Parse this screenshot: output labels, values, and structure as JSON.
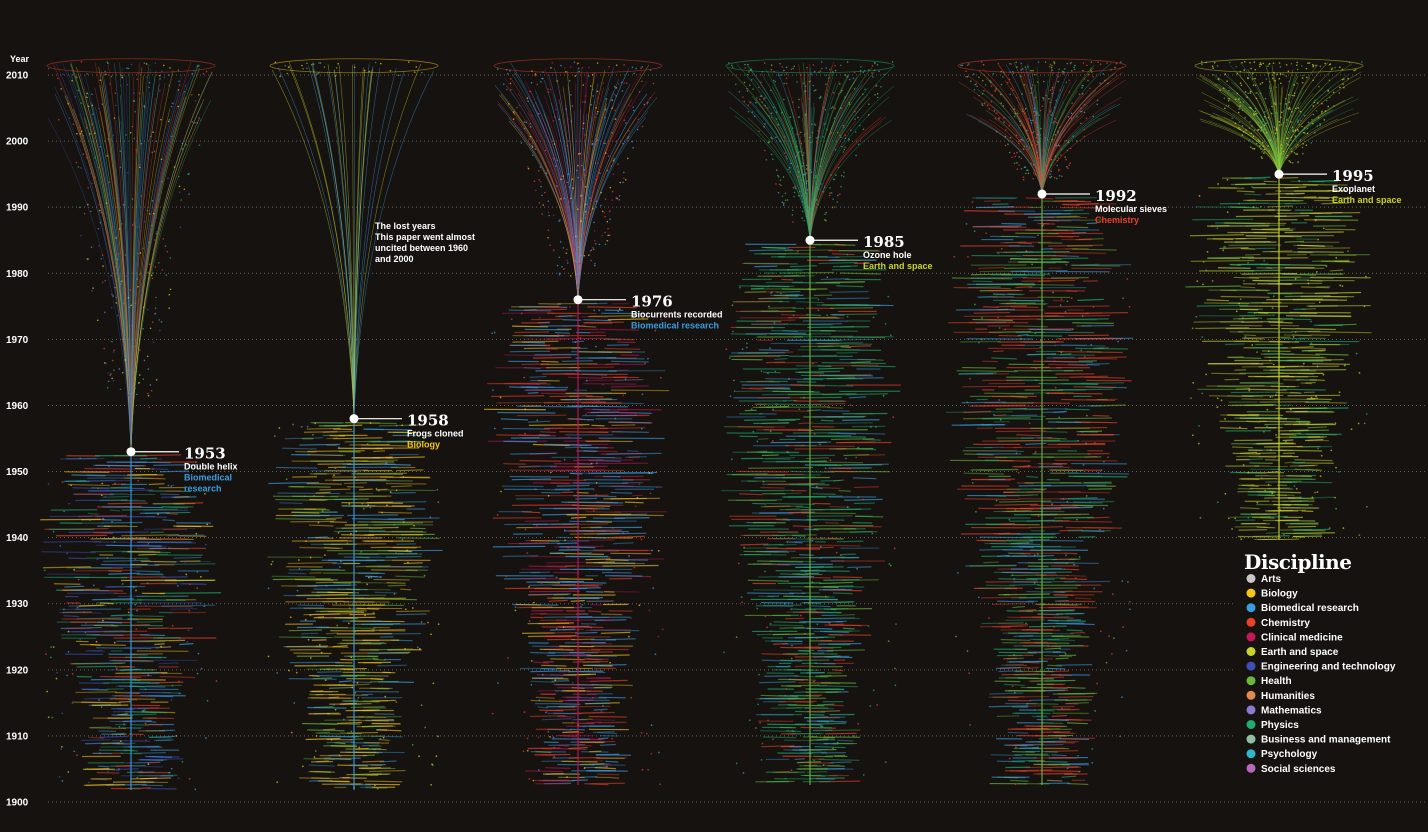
{
  "chart_data": {
    "type": "scatter",
    "title": "",
    "ylabel": "Year",
    "ylim": [
      1900,
      2014
    ],
    "yticks": [
      1900,
      1910,
      1920,
      1930,
      1940,
      1950,
      1960,
      1970,
      1980,
      1990,
      2000,
      2010
    ],
    "ytick_labels": [
      "1900",
      "1910",
      "1920",
      "1930",
      "1940",
      "1950",
      "1960",
      "1970",
      "1980",
      "1990",
      "2000",
      "2010"
    ],
    "grid": true,
    "legend_position": "bottom-right",
    "legend_title": "Discipline",
    "disciplines": [
      {
        "name": "Arts",
        "color": "#c8c8c8"
      },
      {
        "name": "Biology",
        "color": "#f5c518"
      },
      {
        "name": "Biomedical research",
        "color": "#3a9de0"
      },
      {
        "name": "Chemistry",
        "color": "#e8412a"
      },
      {
        "name": "Clinical medicine",
        "color": "#c4175a"
      },
      {
        "name": "Earth and space",
        "color": "#c8d42a"
      },
      {
        "name": "Engineering and technology",
        "color": "#3e4fb5"
      },
      {
        "name": "Health",
        "color": "#6ab83a"
      },
      {
        "name": "Humanities",
        "color": "#e08a50"
      },
      {
        "name": "Mathematics",
        "color": "#8a7bd0"
      },
      {
        "name": "Physics",
        "color": "#1fae6e"
      },
      {
        "name": "Business and management",
        "color": "#8fc0a0"
      },
      {
        "name": "Psychology",
        "color": "#2fb8c8"
      },
      {
        "name": "Social sciences",
        "color": "#b46ab8"
      }
    ],
    "papers": [
      {
        "year": 1953,
        "year_label": "1953",
        "title": "Double helix",
        "discipline_lines": [
          "Biomedical",
          "research"
        ],
        "discipline_color": "#3a9de0",
        "mix": [
          "#e8412a",
          "#3a9de0",
          "#1fae6e",
          "#f5c518",
          "#3e4fb5"
        ]
      },
      {
        "year": 1958,
        "year_label": "1958",
        "title": "Frogs cloned",
        "discipline_lines": [
          "Biology"
        ],
        "discipline_color": "#f5c518",
        "mix": [
          "#f5c518",
          "#3a9de0",
          "#6ab83a",
          "#f5c518"
        ]
      },
      {
        "year": 1976,
        "year_label": "1976",
        "title": "Biocurrents recorded",
        "discipline_lines": [
          "Biomedical research"
        ],
        "discipline_color": "#3a9de0",
        "mix": [
          "#e8412a",
          "#c4175a",
          "#3a9de0",
          "#f5c518",
          "#3a9de0"
        ]
      },
      {
        "year": 1985,
        "year_label": "1985",
        "title": "Ozone hole",
        "discipline_lines": [
          "Earth and space"
        ],
        "discipline_color": "#c8d42a",
        "mix": [
          "#1fae6e",
          "#6ab83a",
          "#e8412a",
          "#3a9de0",
          "#1fae6e"
        ]
      },
      {
        "year": 1992,
        "year_label": "1992",
        "title": "Molecular sieves",
        "discipline_lines": [
          "Chemistry"
        ],
        "discipline_color": "#e8412a",
        "mix": [
          "#e8412a",
          "#6ab83a",
          "#3a9de0",
          "#1fae6e",
          "#e8412a"
        ]
      },
      {
        "year": 1995,
        "year_label": "1995",
        "title": "Exoplanet",
        "discipline_lines": [
          "Earth and space"
        ],
        "discipline_color": "#c8d42a",
        "mix": [
          "#c8d42a",
          "#c8d42a",
          "#6ab83a",
          "#1fae6e",
          "#c8d42a"
        ]
      }
    ],
    "annotations": [
      {
        "title": "The lost years",
        "lines": [
          "This paper went almost",
          "uncited between 1960",
          "and 2000"
        ]
      }
    ]
  }
}
